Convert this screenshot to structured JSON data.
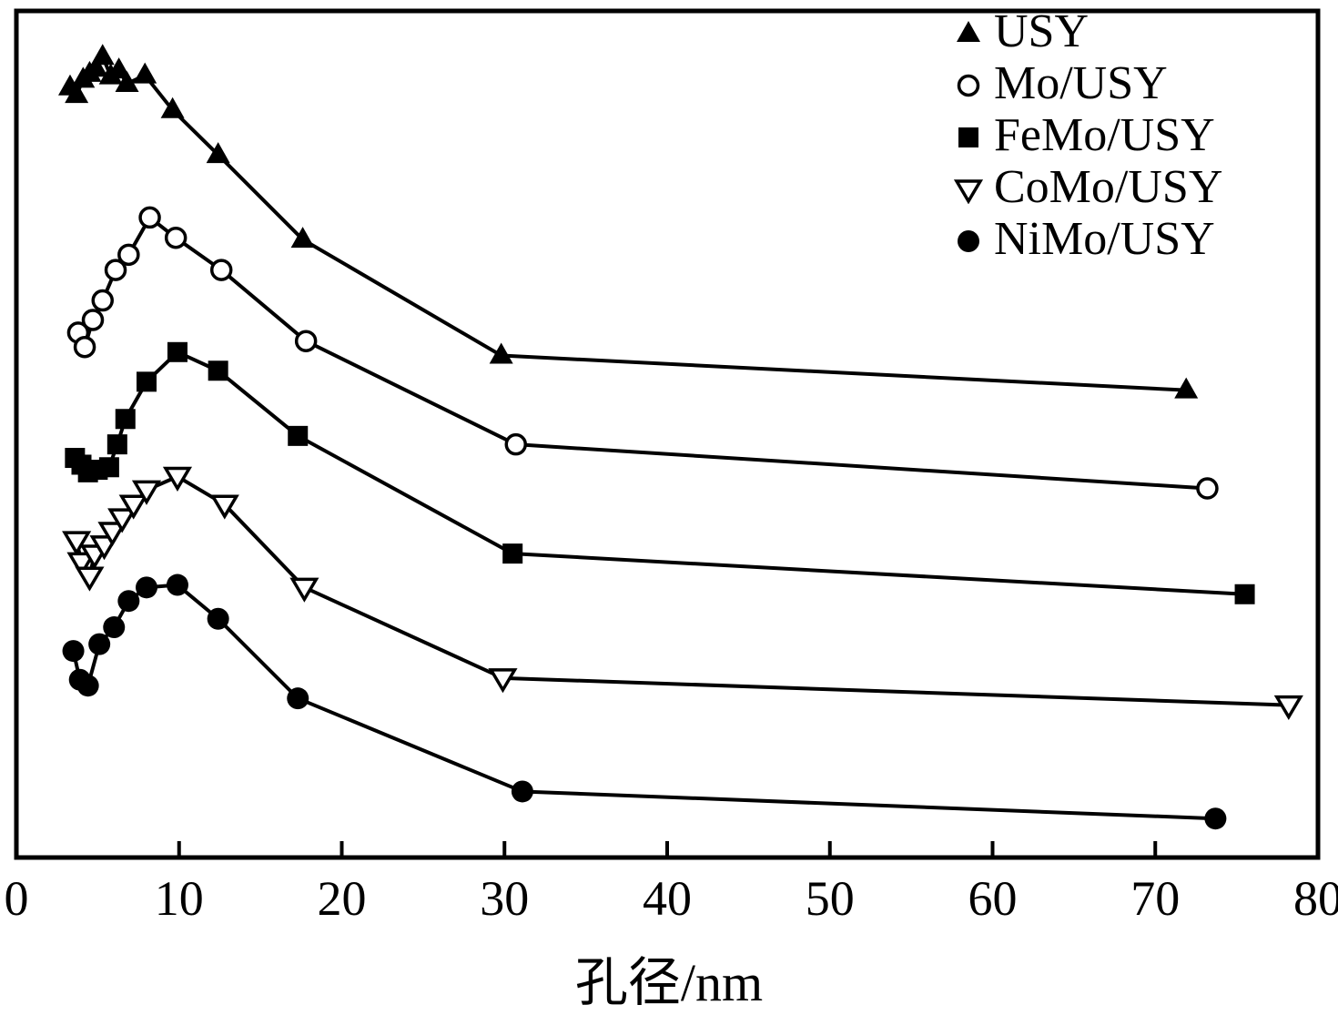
{
  "chart_data": {
    "type": "line",
    "title": "",
    "xlabel": "孔径/nm",
    "ylabel": "",
    "xlim": [
      0,
      80
    ],
    "ylim": [
      0,
      100
    ],
    "x_ticks": [
      0,
      10,
      20,
      30,
      40,
      50,
      60,
      70,
      80
    ],
    "grid": false,
    "legend_position": "top-right",
    "line_color": "#000000",
    "background_color": "#ffffff",
    "series": [
      {
        "name": "USY",
        "marker": "triangle-up-filled",
        "x": [
          3.3,
          3.7,
          4.1,
          4.5,
          4.9,
          5.3,
          5.8,
          6.3,
          6.8,
          7.9,
          9.6,
          12.4,
          17.6,
          29.8,
          71.9
        ],
        "y": [
          91.0,
          90.1,
          91.9,
          92.6,
          93.2,
          94.6,
          92.3,
          93.0,
          91.4,
          92.4,
          88.3,
          83.0,
          73.0,
          59.3,
          55.2
        ]
      },
      {
        "name": "Mo/USY",
        "marker": "circle-open",
        "x": [
          3.8,
          4.2,
          4.7,
          5.3,
          6.1,
          6.9,
          8.2,
          9.8,
          12.6,
          17.8,
          30.7,
          73.2
        ],
        "y": [
          62.0,
          60.3,
          63.5,
          65.8,
          69.4,
          71.2,
          75.6,
          73.2,
          69.4,
          61.0,
          48.8,
          43.6
        ]
      },
      {
        "name": "FeMo/USY",
        "marker": "square-filled",
        "x": [
          3.6,
          4.0,
          4.4,
          5.0,
          5.7,
          6.2,
          6.7,
          8.0,
          9.9,
          12.4,
          17.3,
          30.5,
          75.5
        ],
        "y": [
          47.2,
          46.4,
          45.5,
          45.8,
          46.1,
          48.8,
          51.8,
          56.2,
          59.7,
          57.5,
          49.8,
          35.9,
          31.1
        ]
      },
      {
        "name": "CoMo/USY",
        "marker": "triangle-down-open",
        "x": [
          3.7,
          4.0,
          4.5,
          4.8,
          5.4,
          5.9,
          6.5,
          7.2,
          8.0,
          9.9,
          12.8,
          17.7,
          29.9,
          78.2
        ],
        "y": [
          37.4,
          34.9,
          33.2,
          35.8,
          36.9,
          38.5,
          40.1,
          41.7,
          43.4,
          45.0,
          41.7,
          31.9,
          21.2,
          18.0
        ]
      },
      {
        "name": "NiMo/USY",
        "marker": "circle-filled",
        "x": [
          3.5,
          3.9,
          4.4,
          5.1,
          6.0,
          6.9,
          8.0,
          9.9,
          12.4,
          17.3,
          31.1,
          73.7
        ],
        "y": [
          24.4,
          21.0,
          20.3,
          25.2,
          27.2,
          30.3,
          31.9,
          32.2,
          28.2,
          18.8,
          7.8,
          4.6
        ]
      }
    ]
  }
}
